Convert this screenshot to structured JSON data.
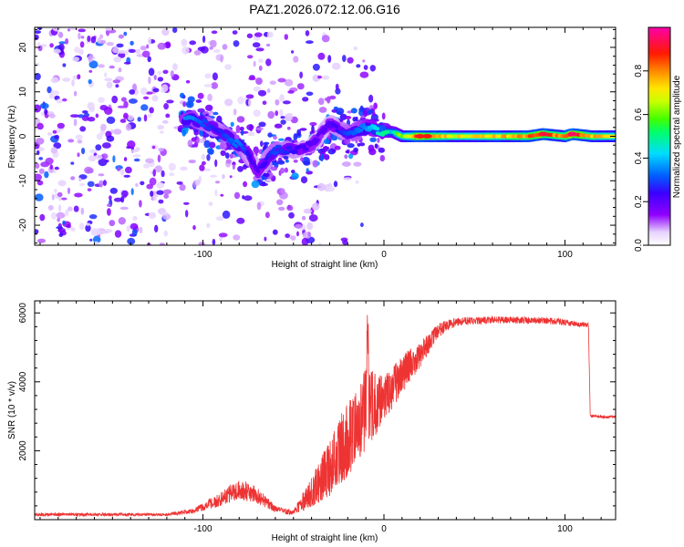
{
  "title": "PAZ1.2026.072.12.06.G16",
  "chart_data": [
    {
      "type": "heatmap",
      "xlabel": "Height of straight line (km)",
      "ylabel": "Frequency (Hz)",
      "xlim": [
        -193,
        128
      ],
      "ylim": [
        -24.5,
        24.5
      ],
      "xticks": [
        -100,
        0,
        100
      ],
      "yticks": [
        -20,
        -10,
        0,
        10,
        20
      ],
      "colorbar": {
        "label": "Normalized spectral amplitude",
        "range": [
          0,
          1
        ],
        "ticks": [
          "0.0",
          "0.2",
          "0.4",
          "0.6",
          "0.8"
        ],
        "colormap": "rainbow (white, violet, blue, cyan, green, yellow, red, magenta)"
      },
      "ridge": [
        {
          "x": -105,
          "f": 4,
          "a": 0.35
        },
        {
          "x": -100,
          "f": 3,
          "a": 0.3
        },
        {
          "x": -92,
          "f": 1.5,
          "a": 0.25
        },
        {
          "x": -80,
          "f": -2,
          "a": 0.35
        },
        {
          "x": -75,
          "f": -4,
          "a": 0.25
        },
        {
          "x": -70,
          "f": -8,
          "a": 0.2
        },
        {
          "x": -60,
          "f": -3,
          "a": 0.3
        },
        {
          "x": -50,
          "f": -3,
          "a": 0.25
        },
        {
          "x": -40,
          "f": -2,
          "a": 0.2
        },
        {
          "x": -30,
          "f": 3,
          "a": 0.2
        },
        {
          "x": -20,
          "f": 0.5,
          "a": 0.3
        },
        {
          "x": -10,
          "f": 2,
          "a": 0.35
        },
        {
          "x": 0,
          "f": 1,
          "a": 0.5
        },
        {
          "x": 5,
          "f": 1,
          "a": 0.45
        },
        {
          "x": 10,
          "f": 0,
          "a": 0.6
        },
        {
          "x": 20,
          "f": 0,
          "a": 0.9
        },
        {
          "x": 30,
          "f": 0,
          "a": 0.8
        },
        {
          "x": 40,
          "f": 0,
          "a": 0.7
        },
        {
          "x": 50,
          "f": 0,
          "a": 0.7
        },
        {
          "x": 60,
          "f": 0,
          "a": 0.75
        },
        {
          "x": 70,
          "f": 0,
          "a": 0.75
        },
        {
          "x": 80,
          "f": 0,
          "a": 0.8
        },
        {
          "x": 88,
          "f": 0.5,
          "a": 0.9
        },
        {
          "x": 100,
          "f": 0,
          "a": 0.75
        },
        {
          "x": 104,
          "f": 0.5,
          "a": 0.95
        },
        {
          "x": 115,
          "f": 0,
          "a": 0.75
        },
        {
          "x": 128,
          "f": 0,
          "a": 0.7
        }
      ]
    },
    {
      "type": "line",
      "xlabel": "Height of straight line (km)",
      "ylabel": "SNR (10 * v/v)",
      "xlim": [
        -193,
        128
      ],
      "ylim": [
        0,
        6350
      ],
      "xticks": [
        -100,
        0,
        100
      ],
      "yticks": [
        2000,
        4000,
        6000
      ],
      "color": "#ee3333",
      "series": [
        {
          "name": "SNR",
          "envelope": [
            {
              "x": -193,
              "mean": 150,
              "spread": 100
            },
            {
              "x": -120,
              "mean": 150,
              "spread": 80
            },
            {
              "x": -105,
              "mean": 250,
              "spread": 150
            },
            {
              "x": -90,
              "mean": 600,
              "spread": 400
            },
            {
              "x": -80,
              "mean": 900,
              "spread": 600
            },
            {
              "x": -70,
              "mean": 700,
              "spread": 500
            },
            {
              "x": -60,
              "mean": 300,
              "spread": 200
            },
            {
              "x": -50,
              "mean": 200,
              "spread": 150
            },
            {
              "x": -40,
              "mean": 800,
              "spread": 800
            },
            {
              "x": -30,
              "mean": 1500,
              "spread": 1500
            },
            {
              "x": -25,
              "mean": 2000,
              "spread": 1800
            },
            {
              "x": -20,
              "mean": 2300,
              "spread": 2000
            },
            {
              "x": -15,
              "mean": 2700,
              "spread": 1900
            },
            {
              "x": -10,
              "mean": 3200,
              "spread": 2200
            },
            {
              "x": 0,
              "mean": 3500,
              "spread": 1200
            },
            {
              "x": 10,
              "mean": 4200,
              "spread": 1000
            },
            {
              "x": 20,
              "mean": 4800,
              "spread": 800
            },
            {
              "x": 30,
              "mean": 5500,
              "spread": 400
            },
            {
              "x": 40,
              "mean": 5750,
              "spread": 250
            },
            {
              "x": 60,
              "mean": 5800,
              "spread": 200
            },
            {
              "x": 90,
              "mean": 5780,
              "spread": 200
            },
            {
              "x": 113,
              "mean": 5650,
              "spread": 150
            },
            {
              "x": 114,
              "mean": 3000,
              "spread": 80
            },
            {
              "x": 128,
              "mean": 2980,
              "spread": 80
            }
          ]
        }
      ]
    }
  ]
}
